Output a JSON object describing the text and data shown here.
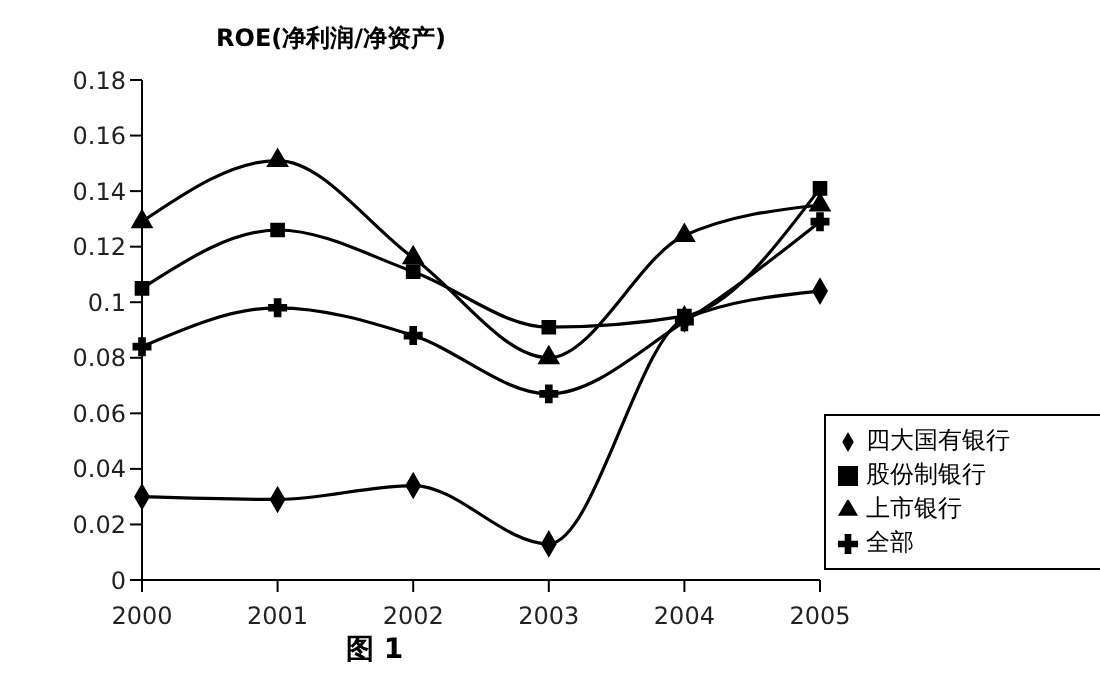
{
  "chart_data": {
    "type": "line",
    "title": "ROE(净利润/净资产)",
    "categories": [
      "2000",
      "2001",
      "2002",
      "2003",
      "2004",
      "2005"
    ],
    "series": [
      {
        "name": "四大国有银行",
        "color": "#000000",
        "marker": "diamond",
        "values": [
          0.03,
          0.029,
          0.034,
          0.013,
          0.094,
          0.104
        ]
      },
      {
        "name": "股份制银行",
        "color": "#000000",
        "marker": "square",
        "values": [
          0.105,
          0.126,
          0.111,
          0.091,
          0.095,
          0.141
        ]
      },
      {
        "name": "上市银行",
        "color": "#000000",
        "marker": "triangle",
        "values": [
          0.129,
          0.151,
          0.116,
          0.08,
          0.124,
          0.135
        ]
      },
      {
        "name": "全部",
        "color": "#000000",
        "marker": "cross",
        "values": [
          0.084,
          0.098,
          0.088,
          0.067,
          0.093,
          0.129
        ]
      }
    ],
    "ylim": [
      0,
      0.18
    ],
    "yticks": [
      0,
      0.02,
      0.04,
      0.06,
      0.08,
      0.1,
      0.12,
      0.14,
      0.16,
      0.18
    ],
    "grid": false,
    "legend": "bottom right",
    "line_style": "solid",
    "annotations": [
      "图 1"
    ]
  }
}
